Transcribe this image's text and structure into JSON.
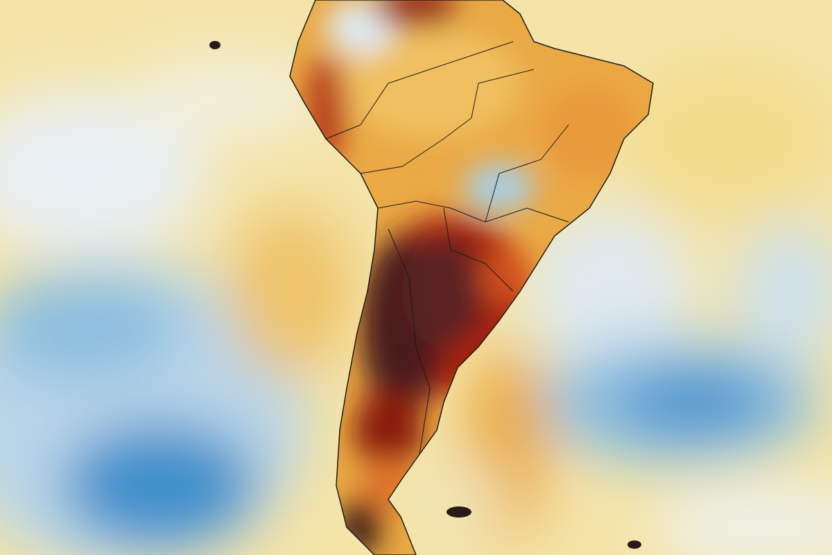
{
  "map": {
    "region": "South America",
    "colors": {
      "ocean_neutral": "#f4e6b4",
      "cool_light": "#e6eef3",
      "cool": "#8ec0e0",
      "cool_strong": "#2f86c4",
      "warm": "#efbe55",
      "hot": "#e0762a",
      "very_hot": "#a8230f",
      "extreme": "#4a1f1c",
      "borders": "#1a1a1a"
    }
  }
}
